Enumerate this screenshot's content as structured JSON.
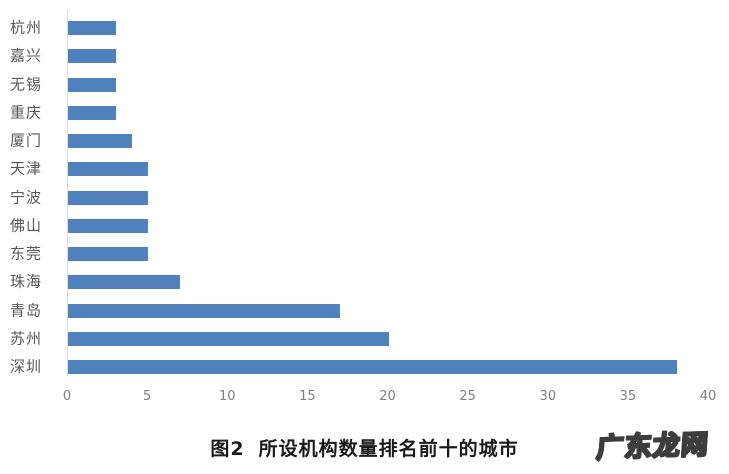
{
  "chart_data": {
    "type": "bar",
    "orientation": "horizontal",
    "categories": [
      "杭州",
      "嘉兴",
      "无锡",
      "重庆",
      "厦门",
      "天津",
      "宁波",
      "佛山",
      "东莞",
      "珠海",
      "青岛",
      "苏州",
      "深圳"
    ],
    "values": [
      3,
      3,
      3,
      3,
      4,
      5,
      5,
      5,
      5,
      7,
      17,
      20,
      38
    ],
    "x_ticks": [
      0,
      5,
      10,
      15,
      20,
      25,
      30,
      35,
      40
    ],
    "xlim": [
      0,
      40
    ],
    "xlabel": "",
    "ylabel": "",
    "grid": false,
    "legend": false,
    "title": "图2 所设机构数量排名前十的城市",
    "bar_color": "#4f81bd",
    "axis_line_color": "#d6dce4",
    "category_label_color": "#595959",
    "tick_label_color": "#7f7f7f"
  },
  "caption": {
    "figure_label": "图2",
    "title": "所设机构数量排名前十的城市"
  },
  "watermark": {
    "text": "广东龙网"
  }
}
